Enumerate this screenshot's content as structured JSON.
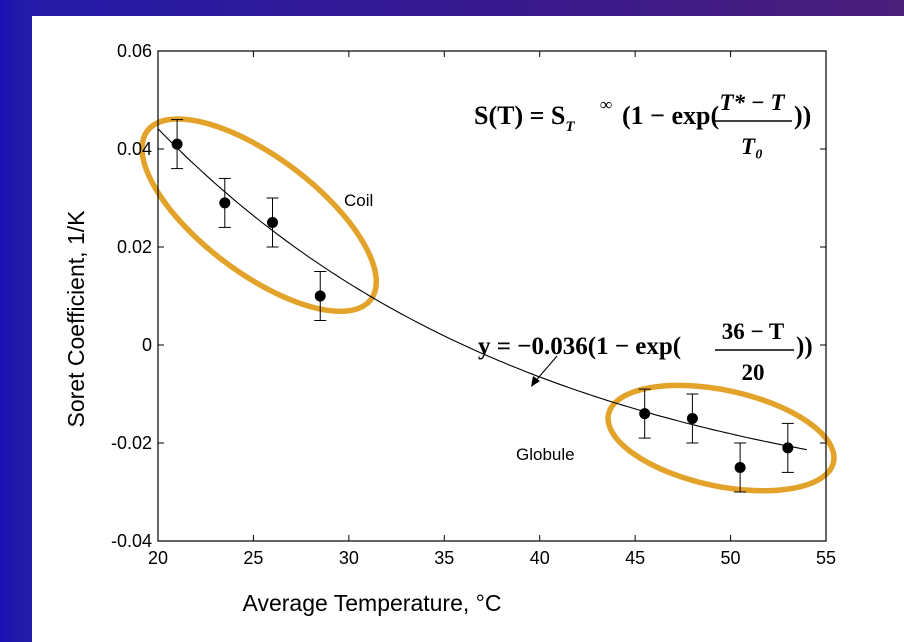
{
  "chart_data": {
    "type": "scatter",
    "xlabel": "Average Temperature, °C",
    "ylabel": "Soret Coefficient, 1/K",
    "xlim": [
      20,
      55
    ],
    "ylim": [
      -0.04,
      0.06
    ],
    "xticks": [
      20,
      25,
      30,
      35,
      40,
      45,
      50,
      55
    ],
    "yticks": [
      -0.04,
      -0.02,
      0,
      0.02,
      0.04,
      0.06
    ],
    "xtick_labels": [
      "20",
      "25",
      "30",
      "35",
      "40",
      "45",
      "50",
      "55"
    ],
    "ytick_labels": [
      "-0.04",
      "-0.02",
      "0",
      "0.02",
      "0.04",
      "0.06"
    ],
    "grid": false,
    "points": [
      {
        "x": 21.0,
        "y": 0.041,
        "err": 0.005
      },
      {
        "x": 23.5,
        "y": 0.029,
        "err": 0.005
      },
      {
        "x": 26.0,
        "y": 0.025,
        "err": 0.005
      },
      {
        "x": 28.5,
        "y": 0.01,
        "err": 0.005
      },
      {
        "x": 45.5,
        "y": -0.014,
        "err": 0.005
      },
      {
        "x": 48.0,
        "y": -0.015,
        "err": 0.005
      },
      {
        "x": 50.5,
        "y": -0.025,
        "err": 0.005
      },
      {
        "x": 53.0,
        "y": -0.021,
        "err": 0.005
      }
    ],
    "fit": {
      "a": -0.036,
      "Tstar": 36,
      "T0": 20,
      "x_range": [
        20,
        54
      ]
    },
    "groups": [
      {
        "label": "Coil",
        "center_x": 25.3,
        "center_y": 0.0265,
        "color": "#e3a32b"
      },
      {
        "label": "Globule",
        "center_x": 49.5,
        "center_y": -0.019,
        "color": "#e3a32b"
      }
    ],
    "equation_general": {
      "lhs": "S(T) = S",
      "sub": "T",
      "sup": "∞",
      "mid": "(1 − exp(",
      "num": "T* − T",
      "den": "T₀",
      "close": "))"
    },
    "equation_fit": {
      "lhs": "y = −0.036(1 − exp(",
      "num": "36 − T",
      "den": "20",
      "close": "))"
    }
  }
}
